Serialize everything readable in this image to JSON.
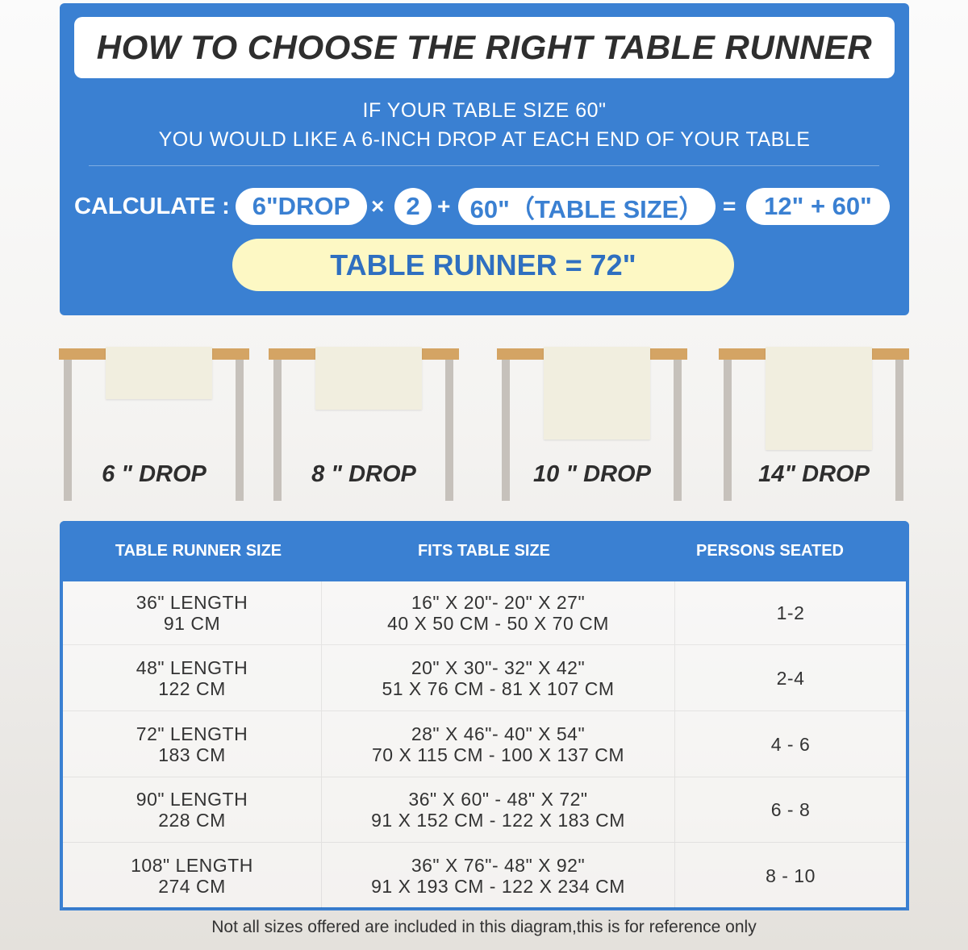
{
  "title": "HOW TO CHOOSE THE RIGHT TABLE RUNNER",
  "intro": [
    "IF YOUR TABLE SIZE 60\"",
    "YOU WOULD LIKE A 6-INCH DROP AT EACH END OF YOUR TABLE"
  ],
  "calc": {
    "label": "CALCULATE :",
    "drop": "6\"DROP",
    "times": "×",
    "two": "2",
    "plus": "+",
    "table": "60\"（TABLE SIZE）",
    "equals": "=",
    "sum": "12\" + 60\"",
    "result": "TABLE RUNNER = 72\""
  },
  "drops": [
    {
      "label": "6 \" DROP",
      "inches": 6
    },
    {
      "label": "8 \" DROP",
      "inches": 8
    },
    {
      "label": "10 \" DROP",
      "inches": 10
    },
    {
      "label": "14\" DROP",
      "inches": 14
    }
  ],
  "table": {
    "headers": [
      "TABLE RUNNER SIZE",
      "FITS TABLE SIZE",
      "PERSONS SEATED"
    ],
    "rows": [
      {
        "size": [
          "36\" LENGTH",
          "91 CM"
        ],
        "fits": [
          "16\" X 20\"- 20\" X 27\"",
          "40 X 50 CM - 50 X 70 CM"
        ],
        "persons": "1-2"
      },
      {
        "size": [
          "48\" LENGTH",
          "122 CM"
        ],
        "fits": [
          "20\" X 30\"- 32\" X 42\"",
          "51 X 76 CM - 81 X 107 CM"
        ],
        "persons": "2-4"
      },
      {
        "size": [
          "72\" LENGTH",
          "183 CM"
        ],
        "fits": [
          "28\" X 46\"- 40\" X 54\"",
          "70 X 115 CM - 100 X 137 CM"
        ],
        "persons": "4 - 6"
      },
      {
        "size": [
          "90\" LENGTH",
          "228 CM"
        ],
        "fits": [
          "36\" X 60\" - 48\" X 72\"",
          "91 X 152 CM - 122 X 183 CM"
        ],
        "persons": "6 - 8"
      },
      {
        "size": [
          "108\" LENGTH",
          "274 CM"
        ],
        "fits": [
          "36\" X 76\"- 48\" X 92\"",
          "91 X 193 CM - 122 X 234 CM"
        ],
        "persons": "8 - 10"
      }
    ]
  },
  "note": "Not all sizes offered are included in this diagram,this is for reference only",
  "colors": {
    "blue": "#3a80d2",
    "yellow": "#fdf8c4",
    "wood": "#d4a464"
  }
}
